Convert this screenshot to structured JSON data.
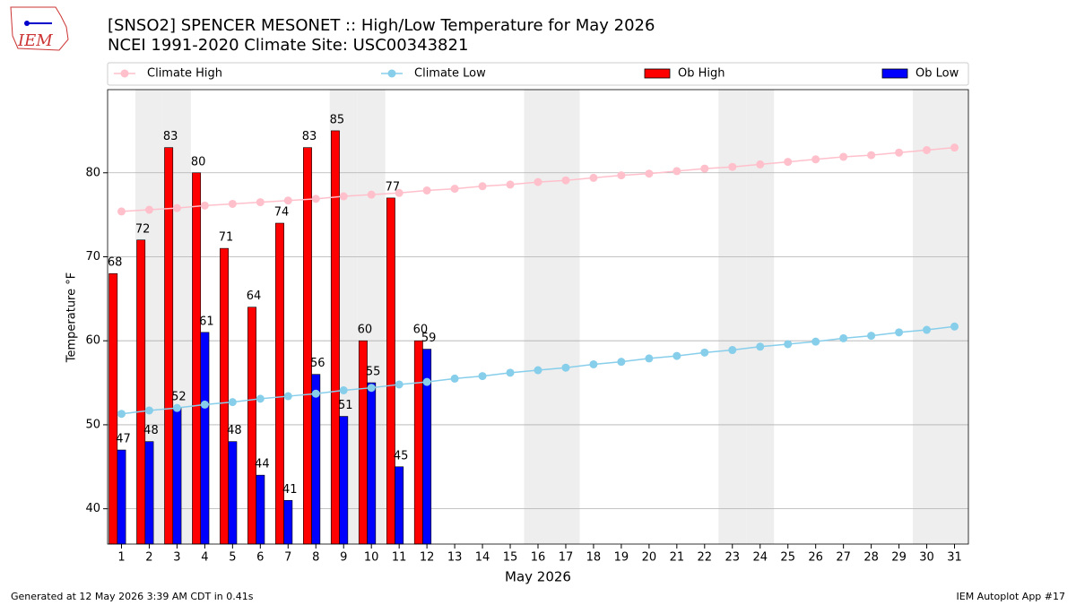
{
  "chart_data": {
    "type": "bar",
    "title": "[SNSO2] SPENCER MESONET :: High/Low Temperature for May 2026",
    "subtitle": "NCEI 1991-2020 Climate Site: USC00343821",
    "ylabel": "Temperature °F",
    "xlabel": "May 2026",
    "logo_text": "IEM",
    "footer_left": "Generated at 12 May 2026 3:39 AM CDT in 0.41s",
    "footer_right": "IEM Autoplot App #17",
    "x": [
      1,
      2,
      3,
      4,
      5,
      6,
      7,
      8,
      9,
      10,
      11,
      12,
      13,
      14,
      15,
      16,
      17,
      18,
      19,
      20,
      21,
      22,
      23,
      24,
      25,
      26,
      27,
      28,
      29,
      30,
      31
    ],
    "xlim": [
      0.5,
      31.5
    ],
    "xticks": [
      1,
      2,
      3,
      4,
      5,
      6,
      7,
      8,
      9,
      10,
      11,
      12,
      13,
      14,
      15,
      16,
      17,
      18,
      19,
      20,
      21,
      22,
      23,
      24,
      25,
      26,
      27,
      28,
      29,
      30,
      31
    ],
    "ylim": [
      35.8,
      89.9
    ],
    "yticks": [
      40,
      50,
      60,
      70,
      80
    ],
    "grid": true,
    "shaded_days": [
      2,
      3,
      9,
      10,
      16,
      17,
      23,
      24,
      30,
      31
    ],
    "series": [
      {
        "name": "Climate High",
        "kind": "line",
        "color": "#ffc0cb",
        "values": [
          75.4,
          75.6,
          75.8,
          76.1,
          76.3,
          76.5,
          76.7,
          76.9,
          77.2,
          77.4,
          77.6,
          77.9,
          78.1,
          78.4,
          78.6,
          78.9,
          79.1,
          79.4,
          79.7,
          79.9,
          80.2,
          80.5,
          80.7,
          81.0,
          81.3,
          81.6,
          81.9,
          82.1,
          82.4,
          82.7,
          83.0
        ]
      },
      {
        "name": "Climate Low",
        "kind": "line",
        "color": "#87ceeb",
        "values": [
          51.3,
          51.7,
          52.0,
          52.4,
          52.7,
          53.1,
          53.4,
          53.7,
          54.1,
          54.4,
          54.8,
          55.1,
          55.5,
          55.8,
          56.2,
          56.5,
          56.8,
          57.2,
          57.5,
          57.9,
          58.2,
          58.6,
          58.9,
          59.3,
          59.6,
          59.9,
          60.3,
          60.6,
          61.0,
          61.3,
          61.7
        ]
      },
      {
        "name": "Ob High",
        "kind": "bar",
        "color": "#ff0000",
        "values": [
          68,
          72,
          83,
          80,
          71,
          64,
          74,
          83,
          85,
          60,
          77,
          60,
          null,
          null,
          null,
          null,
          null,
          null,
          null,
          null,
          null,
          null,
          null,
          null,
          null,
          null,
          null,
          null,
          null,
          null,
          null
        ]
      },
      {
        "name": "Ob Low",
        "kind": "bar",
        "color": "#0000ff",
        "values": [
          47,
          48,
          52,
          61,
          48,
          44,
          41,
          56,
          51,
          55,
          45,
          59,
          null,
          null,
          null,
          null,
          null,
          null,
          null,
          null,
          null,
          null,
          null,
          null,
          null,
          null,
          null,
          null,
          null,
          null,
          null
        ]
      }
    ]
  }
}
